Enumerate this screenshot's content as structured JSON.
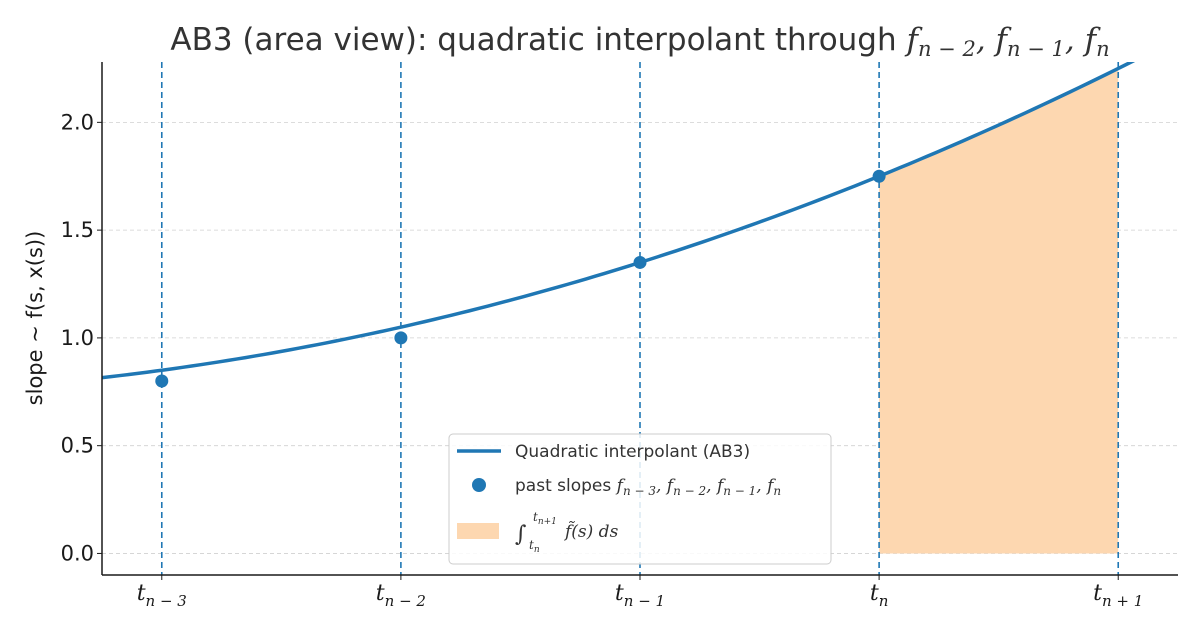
{
  "chart_data": {
    "type": "line",
    "title": "AB3 (area view): quadratic interpolant through ",
    "title_math": [
      {
        "base": "f",
        "sub": "n − 2"
      },
      {
        "base": "f",
        "sub": "n − 1"
      },
      {
        "base": "f",
        "sub": "n"
      }
    ],
    "xlabel": "",
    "ylabel": "slope ~ f(s, x(s))",
    "xlim": [
      -3.25,
      1.25
    ],
    "ylim": [
      -0.1,
      2.28
    ],
    "yticks": [
      0.0,
      0.5,
      1.0,
      1.5,
      2.0
    ],
    "ytick_labels": [
      "0.0",
      "0.5",
      "1.0",
      "1.5",
      "2.0"
    ],
    "xticks": [
      {
        "x": -3,
        "base": "t",
        "sub": "n − 3"
      },
      {
        "x": -2,
        "base": "t",
        "sub": "n − 2"
      },
      {
        "x": -1,
        "base": "t",
        "sub": "n − 1"
      },
      {
        "x": 0,
        "base": "t",
        "sub": "n"
      },
      {
        "x": 1,
        "base": "t",
        "sub": "n + 1"
      }
    ],
    "grid": "y",
    "series": [
      {
        "name": "Quadratic interpolant (AB3)",
        "kind": "line",
        "color": "#1f77b4",
        "coefficients": {
          "a": 0.05,
          "b": 0.45,
          "c": 1.75
        },
        "x": [
          -3.25,
          -3.0,
          -2.5,
          -2.0,
          -1.5,
          -1.0,
          -0.5,
          0.0,
          0.5,
          1.0,
          1.25
        ],
        "y": [
          0.6656,
          0.7,
          0.7875,
          1.0,
          1.1375,
          1.35,
          1.5375,
          1.75,
          1.9875,
          2.2,
          2.3906
        ]
      },
      {
        "name": "past slopes",
        "kind": "scatter",
        "color": "#1f77b4",
        "x": [
          -3,
          -2,
          -1,
          0
        ],
        "y": [
          0.8,
          1.0,
          1.35,
          1.75
        ]
      }
    ],
    "area": {
      "from_x": 0,
      "to_x": 1,
      "color": "#fdd7b0"
    },
    "vlines": {
      "x": [
        -3,
        -2,
        -1,
        0,
        1
      ],
      "color": "#1f77b4",
      "style": "dashed"
    },
    "legend": {
      "position": "lower center",
      "entries": [
        {
          "label": "Quadratic interpolant (AB3)"
        },
        {
          "label": "past slopes ",
          "math": [
            {
              "base": "f",
              "sub": "n − 3"
            },
            {
              "base": "f",
              "sub": "n − 2"
            },
            {
              "base": "f",
              "sub": "n − 1"
            },
            {
              "base": "f",
              "sub": "n"
            }
          ]
        },
        {
          "label": "∫",
          "upper": "t",
          "upper_sub": "n+1",
          "lower": "t",
          "lower_sub": "n",
          "integrand": "f̃(s) ds"
        }
      ]
    }
  }
}
